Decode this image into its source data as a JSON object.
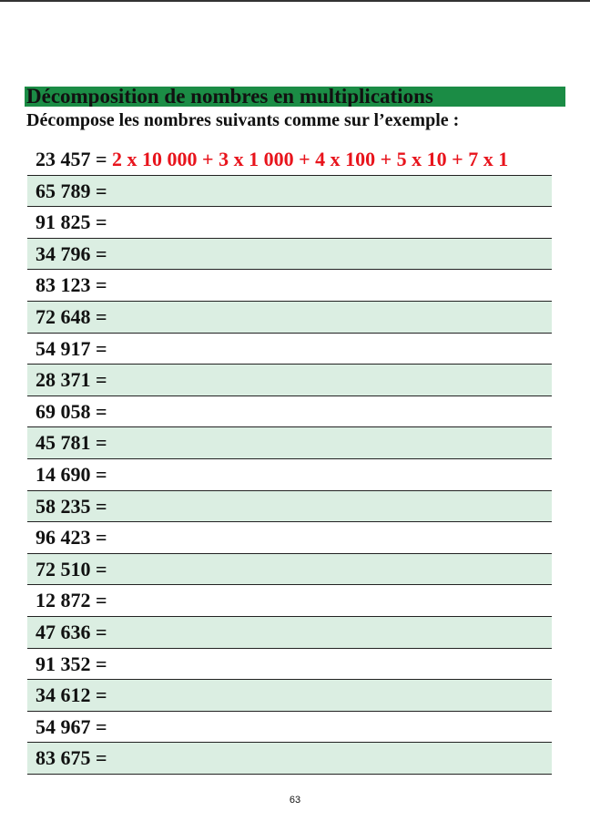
{
  "header": {
    "title": "Décomposition de nombres en multiplications",
    "instruction": "Décompose les nombres suivants comme sur l’exemple :"
  },
  "example": {
    "label": "23 457 =",
    "answer": "2 x 10 000 + 3 x 1 000 + 4 x 100 + 5 x 10 + 7 x 1"
  },
  "rows": [
    "65 789 =",
    "91 825 =",
    "34 796 =",
    "83 123 =",
    "72 648 =",
    "54 917 =",
    "28 371 =",
    "69 058 =",
    "45 781 =",
    "14 690 =",
    "58 235 =",
    "96 423 =",
    "72 510 =",
    "12 872 =",
    "47 636 =",
    "91 352 =",
    "34 612 =",
    "54 967 =",
    "83 675 ="
  ],
  "page_number": "63"
}
